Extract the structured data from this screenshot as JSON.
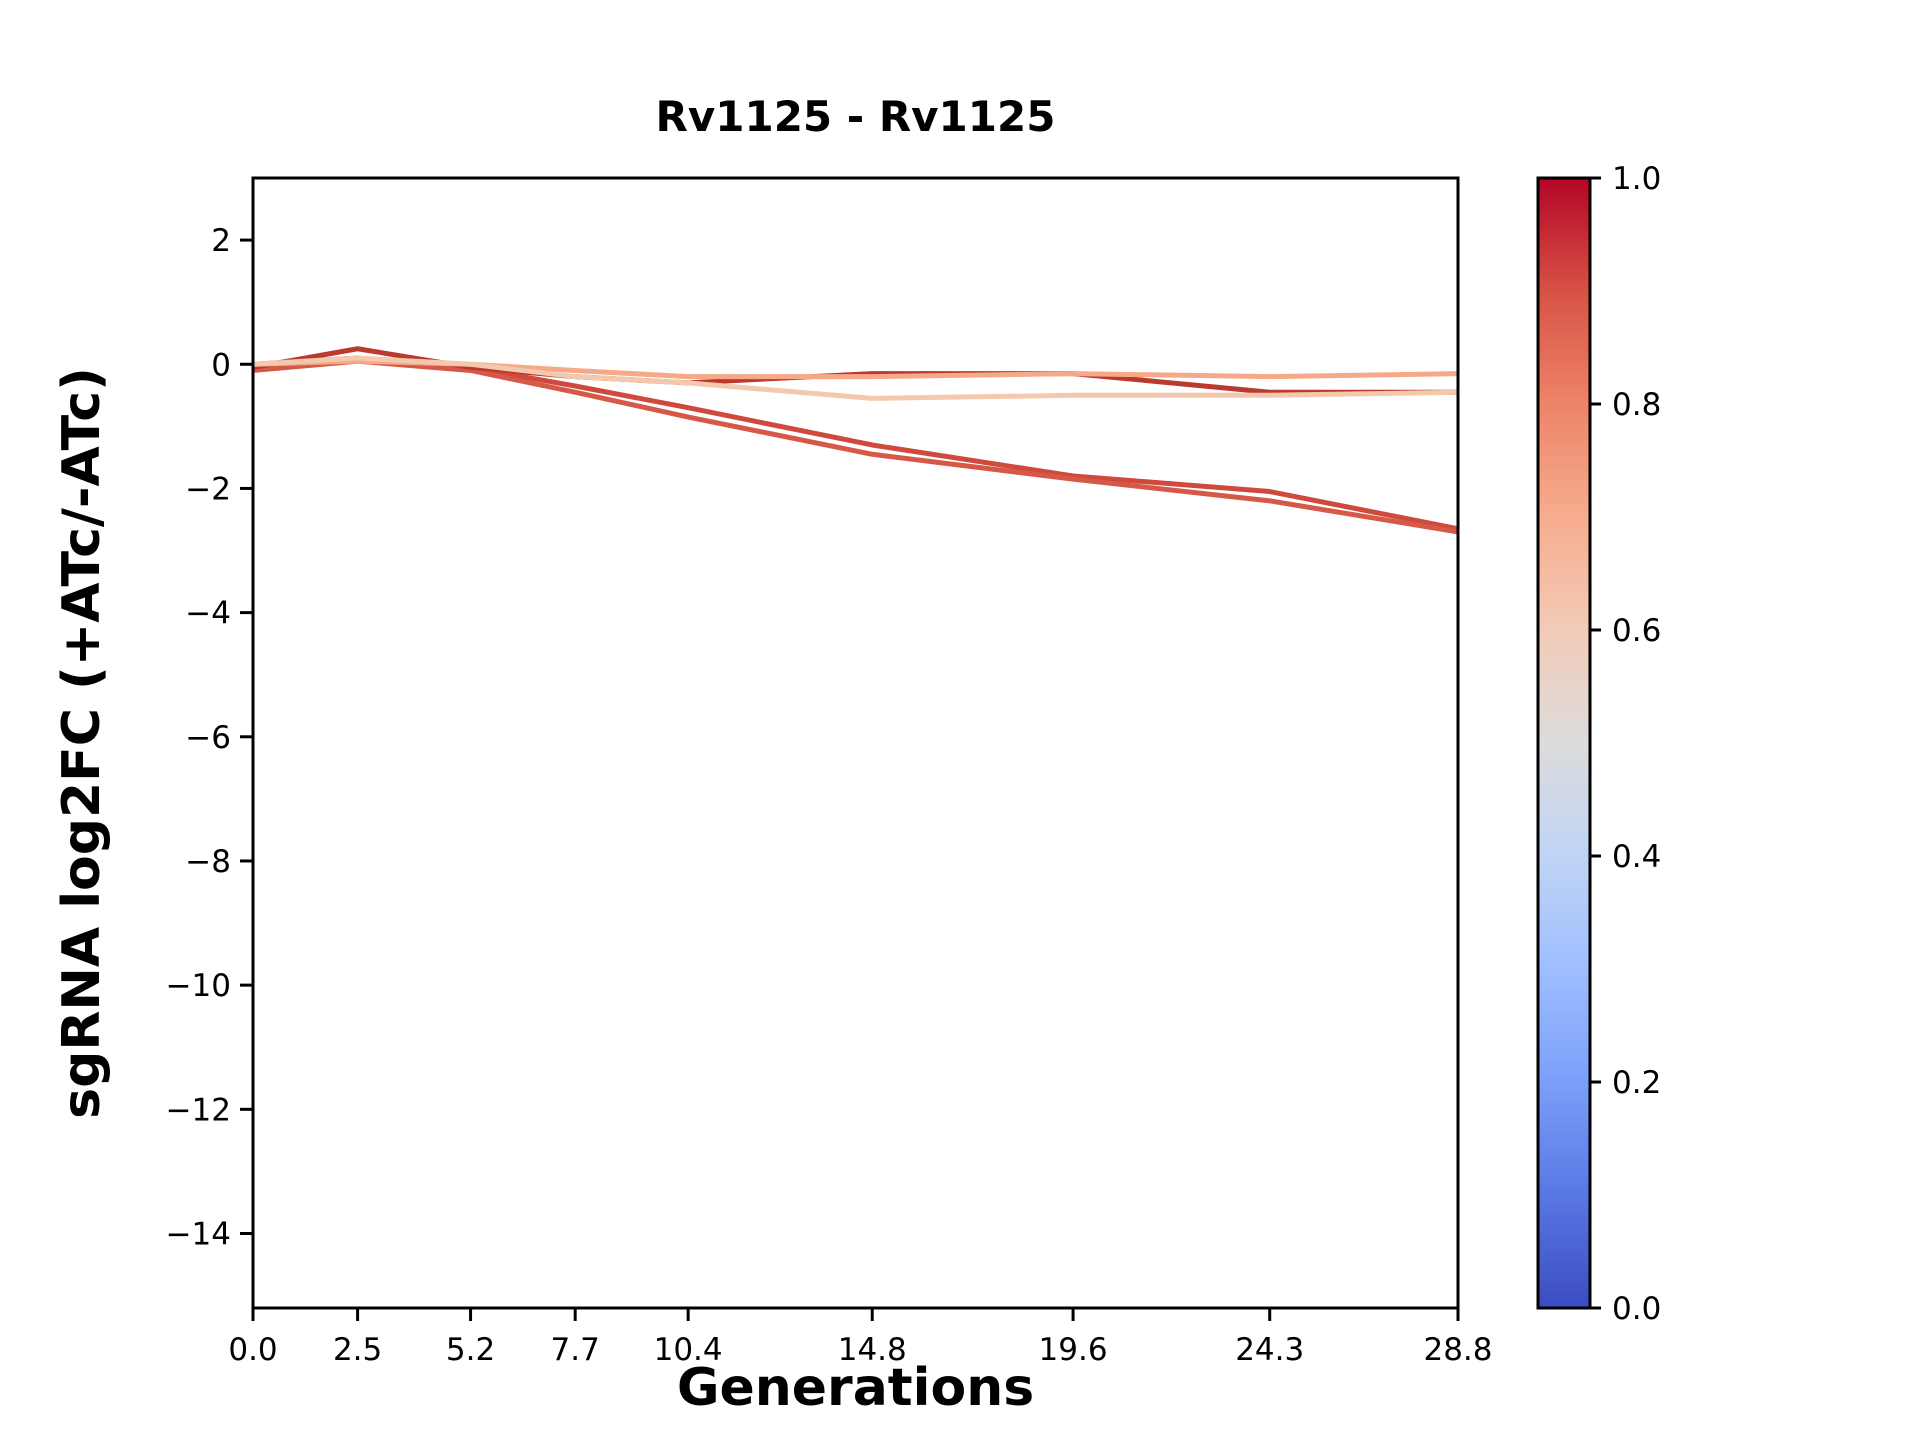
{
  "chart_data": {
    "type": "line",
    "title": "Rv1125 - Rv1125",
    "xlabel": "Generations",
    "ylabel": "sgRNA log2FC (+ATc/-ATc)",
    "xlim": [
      0,
      28.8
    ],
    "ylim": [
      -15.2,
      3.0
    ],
    "grid": false,
    "x_ticks": {
      "values": [
        0.0,
        2.5,
        5.2,
        7.7,
        10.4,
        14.8,
        19.6,
        24.3,
        28.8
      ],
      "labels": [
        "0.0",
        "2.5",
        "5.2",
        "7.7",
        "10.4",
        "14.8",
        "19.6",
        "24.3",
        "28.8"
      ]
    },
    "y_ticks": {
      "values": [
        2,
        0,
        -2,
        -4,
        -6,
        -8,
        -10,
        -12,
        -14
      ],
      "labels": [
        "2",
        "0",
        "−2",
        "−4",
        "−6",
        "−8",
        "−10",
        "−12",
        "−14"
      ]
    },
    "x": [
      0.0,
      2.5,
      5.2,
      7.7,
      10.4,
      14.8,
      19.6,
      24.3,
      28.8
    ],
    "line_width": 5,
    "series": [
      {
        "id": "line-1",
        "colormap_value": 0.87,
        "color": "#cf4a3c",
        "y": [
          0.0,
          0.1,
          -0.05,
          -0.35,
          -0.7,
          -1.3,
          -1.8,
          -2.05,
          -2.65
        ]
      },
      {
        "id": "line-2",
        "colormap_value": 0.85,
        "color": "#d65847",
        "y": [
          -0.1,
          0.05,
          -0.1,
          -0.45,
          -0.85,
          -1.45,
          -1.85,
          -2.2,
          -2.7
        ]
      },
      {
        "id": "line-3",
        "colormap_value": 0.94,
        "color": "#bb3a2e",
        "y": [
          -0.05,
          0.25,
          -0.05,
          -0.2,
          -0.3,
          -0.15,
          -0.15,
          -0.45,
          -0.45
        ]
      },
      {
        "id": "line-4",
        "colormap_value": 0.7,
        "color": "#f5a988",
        "y": [
          0.0,
          0.05,
          0.0,
          -0.1,
          -0.2,
          -0.2,
          -0.15,
          -0.2,
          -0.15
        ]
      },
      {
        "id": "line-5",
        "colormap_value": 0.6,
        "color": "#f3c8ac",
        "y": [
          0.0,
          0.1,
          0.0,
          -0.2,
          -0.3,
          -0.55,
          -0.5,
          -0.5,
          -0.45
        ]
      }
    ],
    "colorbar": {
      "colormap": "coolwarm",
      "range": [
        0.0,
        1.0
      ],
      "ticks": {
        "values": [
          0.0,
          0.2,
          0.4,
          0.6,
          0.8,
          1.0
        ],
        "labels": [
          "0.0",
          "0.2",
          "0.4",
          "0.6",
          "0.8",
          "1.0"
        ]
      },
      "gradient_stops": [
        [
          0.0,
          "#3b4cc0"
        ],
        [
          0.1,
          "#5977e3"
        ],
        [
          0.2,
          "#7b9ff9"
        ],
        [
          0.3,
          "#9ebeff"
        ],
        [
          0.4,
          "#c0d4f5"
        ],
        [
          0.5,
          "#dddcdc"
        ],
        [
          0.6,
          "#f2cbb7"
        ],
        [
          0.7,
          "#f7ac8e"
        ],
        [
          0.8,
          "#ee8468"
        ],
        [
          0.9,
          "#d65244"
        ],
        [
          1.0,
          "#b40426"
        ]
      ]
    },
    "axis_color": "#000000",
    "background_color": "#ffffff"
  }
}
